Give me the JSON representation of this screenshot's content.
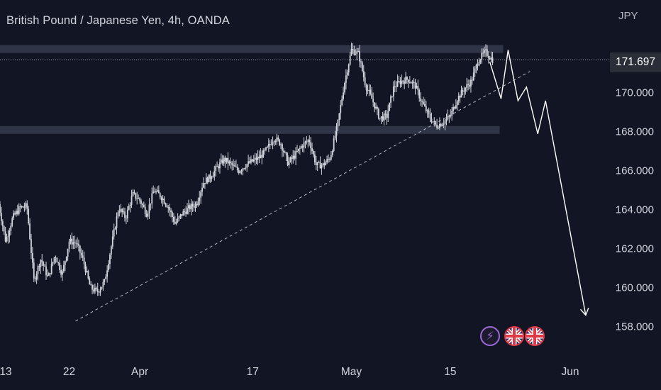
{
  "header": {
    "title": "British Pound / Japanese Yen, 4h, OANDA",
    "currency": "JPY"
  },
  "price_badge": "171.697",
  "events": [
    {
      "icon": "bolt-icon"
    },
    {
      "icon": "uk-flag-icon"
    },
    {
      "icon": "uk-flag-icon"
    }
  ],
  "colors": {
    "background": "#121624",
    "candles": "#d1d4dc",
    "zones": "#363a4e",
    "projection": "#ffffff",
    "trendline": "#b2b5be"
  },
  "chart_data": {
    "type": "candlestick",
    "title": "British Pound / Japanese Yen, 4h, OANDA",
    "ylabel": "JPY",
    "ylim": [
      157.0,
      173.5
    ],
    "y_ticks": [
      {
        "value": 158,
        "label": "158.000"
      },
      {
        "value": 160,
        "label": "160.000"
      },
      {
        "value": 162,
        "label": "162.000"
      },
      {
        "value": 164,
        "label": "164.000"
      },
      {
        "value": 166,
        "label": "166.000"
      },
      {
        "value": 168,
        "label": "168.000"
      },
      {
        "value": 170,
        "label": "170.000"
      }
    ],
    "x_ticks": [
      {
        "day": 0,
        "label": "13"
      },
      {
        "day": 9,
        "label": "22"
      },
      {
        "day": 19,
        "label": "Apr"
      },
      {
        "day": 35,
        "label": "17"
      },
      {
        "day": 49,
        "label": "May"
      },
      {
        "day": 63,
        "label": "15"
      },
      {
        "day": 80,
        "label": "Jun"
      }
    ],
    "last_price": 171.697,
    "price_path": [
      [
        -1,
        164.3
      ],
      [
        0,
        162.4
      ],
      [
        1,
        163.6
      ],
      [
        2,
        164.1
      ],
      [
        3,
        164.2
      ],
      [
        4,
        160.4
      ],
      [
        5,
        161.5
      ],
      [
        6,
        160.5
      ],
      [
        7,
        161.7
      ],
      [
        8,
        160.7
      ],
      [
        9,
        162.4
      ],
      [
        10,
        162.3
      ],
      [
        11,
        161.4
      ],
      [
        12,
        160.0
      ],
      [
        13,
        159.8
      ],
      [
        14,
        160.3
      ],
      [
        15,
        162.2
      ],
      [
        16,
        164.1
      ],
      [
        17,
        163.6
      ],
      [
        18,
        164.8
      ],
      [
        19,
        164.5
      ],
      [
        20,
        163.8
      ],
      [
        21,
        165.0
      ],
      [
        22,
        164.7
      ],
      [
        23,
        164.2
      ],
      [
        24,
        163.3
      ],
      [
        25,
        163.8
      ],
      [
        26,
        164.1
      ],
      [
        27,
        164.3
      ],
      [
        28,
        165.4
      ],
      [
        29,
        165.7
      ],
      [
        30,
        166.2
      ],
      [
        31,
        166.6
      ],
      [
        32,
        166.3
      ],
      [
        33,
        166.0
      ],
      [
        34,
        166.3
      ],
      [
        35,
        166.5
      ],
      [
        36,
        166.7
      ],
      [
        37,
        167.1
      ],
      [
        38,
        167.7
      ],
      [
        39,
        167.4
      ],
      [
        40,
        166.4
      ],
      [
        41,
        166.8
      ],
      [
        42,
        167.3
      ],
      [
        43,
        167.6
      ],
      [
        44,
        166.3
      ],
      [
        45,
        166.3
      ],
      [
        46,
        166.7
      ],
      [
        47,
        168.3
      ],
      [
        48,
        170.5
      ],
      [
        49,
        172.2
      ],
      [
        50,
        172.0
      ],
      [
        51,
        170.4
      ],
      [
        52,
        169.6
      ],
      [
        53,
        168.7
      ],
      [
        54,
        168.8
      ],
      [
        55,
        170.3
      ],
      [
        56,
        170.6
      ],
      [
        57,
        170.7
      ],
      [
        58,
        170.4
      ],
      [
        59,
        169.5
      ],
      [
        60,
        168.8
      ],
      [
        61,
        168.3
      ],
      [
        62,
        168.5
      ],
      [
        63,
        168.8
      ],
      [
        64,
        169.7
      ],
      [
        65,
        170.2
      ],
      [
        66,
        170.6
      ],
      [
        67,
        171.7
      ],
      [
        68,
        172.1
      ],
      [
        69,
        171.697
      ]
    ],
    "zones": [
      {
        "day_start": -1,
        "day_end": 70.5,
        "low": 172.05,
        "high": 172.45
      },
      {
        "day_start": -1,
        "day_end": 70,
        "low": 167.9,
        "high": 168.3
      }
    ],
    "trendline": {
      "from": [
        9.9,
        158.3
      ],
      "to": [
        74.3,
        171.1
      ]
    },
    "projection": [
      [
        68.6,
        171.6
      ],
      [
        70.2,
        169.7
      ],
      [
        71.2,
        172.2
      ],
      [
        72.6,
        169.6
      ],
      [
        73.8,
        170.3
      ],
      [
        75.4,
        167.9
      ],
      [
        76.5,
        169.6
      ],
      [
        82.2,
        158.6
      ]
    ]
  }
}
